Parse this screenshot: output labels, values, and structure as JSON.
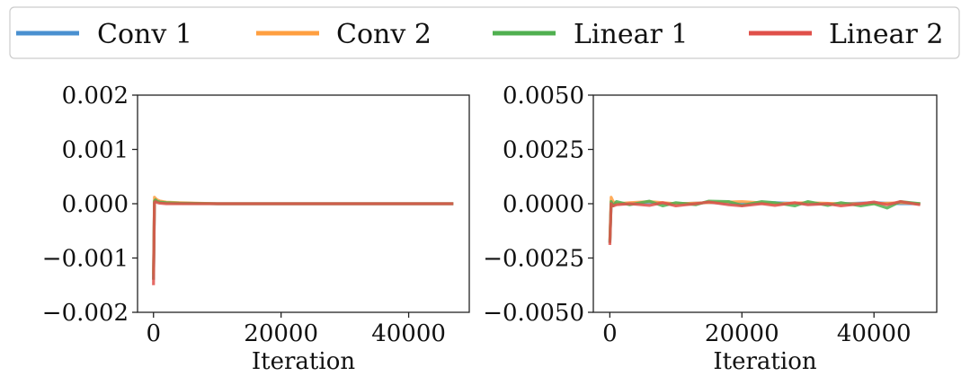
{
  "legend": {
    "entries": [
      {
        "name": "Conv 1",
        "color": "#4a90d0"
      },
      {
        "name": "Conv 2",
        "color": "#ff9f40"
      },
      {
        "name": "Linear 1",
        "color": "#50b050"
      },
      {
        "name": "Linear 2",
        "color": "#e0504a"
      }
    ],
    "placement": "top"
  },
  "chart_data": [
    {
      "type": "line",
      "title": "",
      "xlabel": "Iteration",
      "ylabel": "",
      "xlim": [
        -2500,
        49500
      ],
      "ylim": [
        -0.002,
        0.002
      ],
      "x_ticks": [
        0,
        20000,
        40000
      ],
      "x_tick_labels": [
        "0",
        "20000",
        "40000"
      ],
      "y_ticks": [
        -0.002,
        -0.001,
        0.0,
        0.001,
        0.002
      ],
      "y_tick_labels": [
        "−0.002",
        "−0.001",
        "0.000",
        "0.001",
        "0.002"
      ],
      "grid": false,
      "series": [
        {
          "name": "Conv 1",
          "color": "#4a90d0",
          "x": [
            0,
            150,
            300,
            600,
            1000,
            2000,
            4000,
            10000,
            20000,
            30000,
            40000,
            47000
          ],
          "y": [
            -0.0014,
            3e-05,
            8e-05,
            5e-05,
            3e-05,
            2e-05,
            1e-05,
            0.0,
            0.0,
            0.0,
            0.0,
            0.0
          ]
        },
        {
          "name": "Conv 2",
          "color": "#ff9f40",
          "x": [
            0,
            150,
            300,
            600,
            1000,
            2000,
            4000,
            10000,
            20000,
            30000,
            40000,
            47000
          ],
          "y": [
            -0.0013,
            0.00012,
            0.0001,
            7e-05,
            5e-05,
            3e-05,
            2e-05,
            0.0,
            0.0,
            0.0,
            0.0,
            0.0
          ]
        },
        {
          "name": "Linear 1",
          "color": "#50b050",
          "x": [
            0,
            150,
            300,
            600,
            1000,
            2000,
            4000,
            10000,
            20000,
            30000,
            40000,
            47000
          ],
          "y": [
            -0.0014,
            5e-05,
            7e-05,
            4e-05,
            3e-05,
            2e-05,
            1e-05,
            0.0,
            0.0,
            0.0,
            0.0,
            0.0
          ]
        },
        {
          "name": "Linear 2",
          "color": "#e0504a",
          "x": [
            0,
            150,
            300,
            600,
            1000,
            2000,
            4000,
            10000,
            20000,
            30000,
            40000,
            47000
          ],
          "y": [
            -0.0015,
            2e-05,
            4e-05,
            2e-05,
            1e-05,
            0.0,
            0.0,
            0.0,
            0.0,
            0.0,
            0.0,
            0.0
          ]
        }
      ]
    },
    {
      "type": "line",
      "title": "",
      "xlabel": "Iteration",
      "ylabel": "",
      "xlim": [
        -2500,
        49500
      ],
      "ylim": [
        -0.005,
        0.005
      ],
      "x_ticks": [
        0,
        20000,
        40000
      ],
      "x_tick_labels": [
        "0",
        "20000",
        "40000"
      ],
      "y_ticks": [
        -0.005,
        -0.0025,
        0.0,
        0.0025,
        0.005
      ],
      "y_tick_labels": [
        "−0.0050",
        "−0.0025",
        "0.0000",
        "0.0025",
        "0.0050"
      ],
      "grid": false,
      "series": [
        {
          "name": "Conv 1",
          "color": "#4a90d0",
          "x": [
            0,
            200,
            500,
            1000,
            3000,
            6000,
            10000,
            15000,
            20000,
            25000,
            30000,
            35000,
            40000,
            44000,
            47000
          ],
          "y": [
            -0.0018,
            0.0,
            5e-05,
            0.0,
            0.0,
            5e-05,
            0.0,
            5e-05,
            0.0,
            5e-05,
            0.0,
            0.0,
            5e-05,
            0.0,
            0.0
          ]
        },
        {
          "name": "Conv 2",
          "color": "#ff9f40",
          "x": [
            0,
            200,
            500,
            1000,
            3000,
            6000,
            10000,
            15000,
            20000,
            25000,
            30000,
            35000,
            40000,
            44000,
            47000
          ],
          "y": [
            -0.0017,
            0.0003,
            0.0001,
            0.0,
            5e-05,
            0.0001,
            0.0,
            5e-05,
            0.0001,
            0.0,
            5e-05,
            0.0,
            0.0,
            5e-05,
            0.0
          ]
        },
        {
          "name": "Linear 1",
          "color": "#50b050",
          "x": [
            0,
            200,
            500,
            1000,
            3000,
            6000,
            8000,
            10000,
            13000,
            15000,
            18000,
            20000,
            23000,
            25000,
            28000,
            30000,
            33000,
            35000,
            38000,
            40000,
            42000,
            44000,
            47000
          ],
          "y": [
            -0.0018,
            0.0001,
            -0.0001,
            0.0001,
            -5e-05,
            0.00012,
            -0.0001,
            5e-05,
            -5e-05,
            0.00012,
            0.0001,
            -8e-05,
            0.0001,
            5e-05,
            -0.0001,
            0.0001,
            -8e-05,
            5e-05,
            -0.0001,
            0.0,
            -0.0002,
            0.0001,
            0.0
          ]
        },
        {
          "name": "Linear 2",
          "color": "#e0504a",
          "x": [
            0,
            200,
            500,
            1000,
            3000,
            6000,
            8000,
            10000,
            13000,
            15000,
            18000,
            20000,
            23000,
            25000,
            28000,
            30000,
            33000,
            35000,
            38000,
            40000,
            42000,
            44000,
            47000
          ],
          "y": [
            -0.0019,
            0.0,
            -0.0001,
            -5e-05,
            0.0,
            -8e-05,
            5e-05,
            -0.0001,
            0.0,
            8e-05,
            -5e-05,
            -0.0001,
            0.0,
            -8e-05,
            5e-05,
            -5e-05,
            0.0,
            -0.0001,
            0.0,
            8e-05,
            -5e-05,
            0.0001,
            -5e-05
          ]
        }
      ]
    }
  ]
}
